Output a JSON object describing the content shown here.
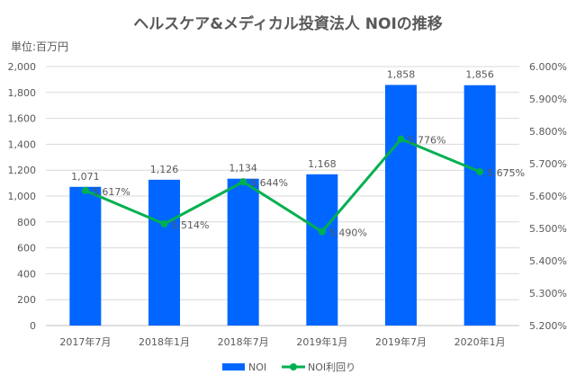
{
  "chart_data": {
    "type": "bar+line",
    "title": "ヘルスケア&メディカル投資法人 NOIの推移",
    "unit_label": "単位:百万円",
    "categories": [
      "2017年7月",
      "2018年1月",
      "2018年7月",
      "2019年1月",
      "2019年7月",
      "2020年1月"
    ],
    "series": [
      {
        "name": "NOI",
        "type": "bar",
        "axis": "left",
        "color": "#0066ff",
        "values": [
          1071,
          1126,
          1134,
          1168,
          1858,
          1856
        ],
        "labels": [
          "1,071",
          "1,126",
          "1,134",
          "1,168",
          "1,858",
          "1,856"
        ]
      },
      {
        "name": "NOI利回り",
        "type": "line",
        "axis": "right",
        "color": "#00b050",
        "values": [
          5.617,
          5.514,
          5.644,
          5.49,
          5.776,
          5.675
        ],
        "labels": [
          "5.617%",
          "5.514%",
          "5.644%",
          "5.490%",
          "5.776%",
          "5.675%"
        ]
      }
    ],
    "y_left": {
      "range": [
        0,
        2000
      ],
      "ticks": [
        "0",
        "200",
        "400",
        "600",
        "800",
        "1,000",
        "1,200",
        "1,400",
        "1,600",
        "1,800",
        "2,000"
      ]
    },
    "y_right": {
      "range": [
        5.2,
        6.0
      ],
      "ticks": [
        "5.200%",
        "5.300%",
        "5.400%",
        "5.500%",
        "5.600%",
        "5.700%",
        "5.800%",
        "5.900%",
        "6.000%"
      ]
    },
    "grid": true,
    "legend_position": "bottom"
  }
}
